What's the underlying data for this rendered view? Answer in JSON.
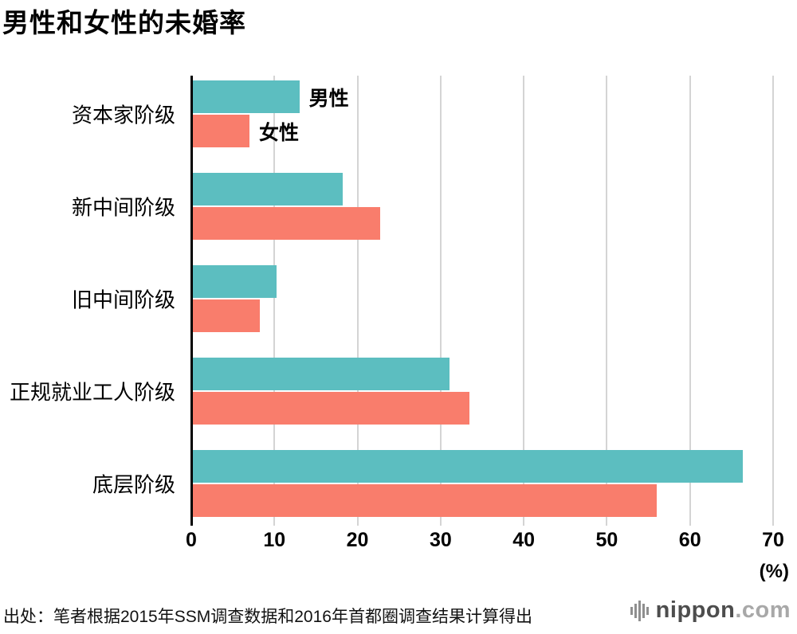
{
  "title": "男性和女性的未婚率",
  "source": "出处：笔者根据2015年SSM调查数据和2016年首都圈调查结果计算得出",
  "logo": {
    "name": "nippon",
    "suffix": ".com"
  },
  "axis": {
    "unit_label": "(%)",
    "ticks": [
      0,
      10,
      20,
      30,
      40,
      50,
      60,
      70
    ]
  },
  "legend": {
    "male": "男性",
    "female": "女性"
  },
  "colors": {
    "male": "#5cbec0",
    "female": "#f97d6c",
    "grid": "#d4d4d4",
    "axis": "#000000"
  },
  "chart_data": {
    "type": "bar",
    "orientation": "horizontal",
    "title": "男性和女性的未婚率",
    "categories": [
      "资本家阶级",
      "新中间阶级",
      "旧中间阶级",
      "正规就业工人阶级",
      "底层阶级"
    ],
    "series": [
      {
        "name": "男性",
        "values": [
          13.0,
          18.2,
          10.3,
          31.1,
          66.4
        ]
      },
      {
        "name": "女性",
        "values": [
          7.0,
          22.7,
          8.2,
          33.5,
          56.0
        ]
      }
    ],
    "xlabel": "(%)",
    "xlim": [
      0,
      70
    ],
    "grid": true,
    "legend_position": "inline-first-group"
  }
}
